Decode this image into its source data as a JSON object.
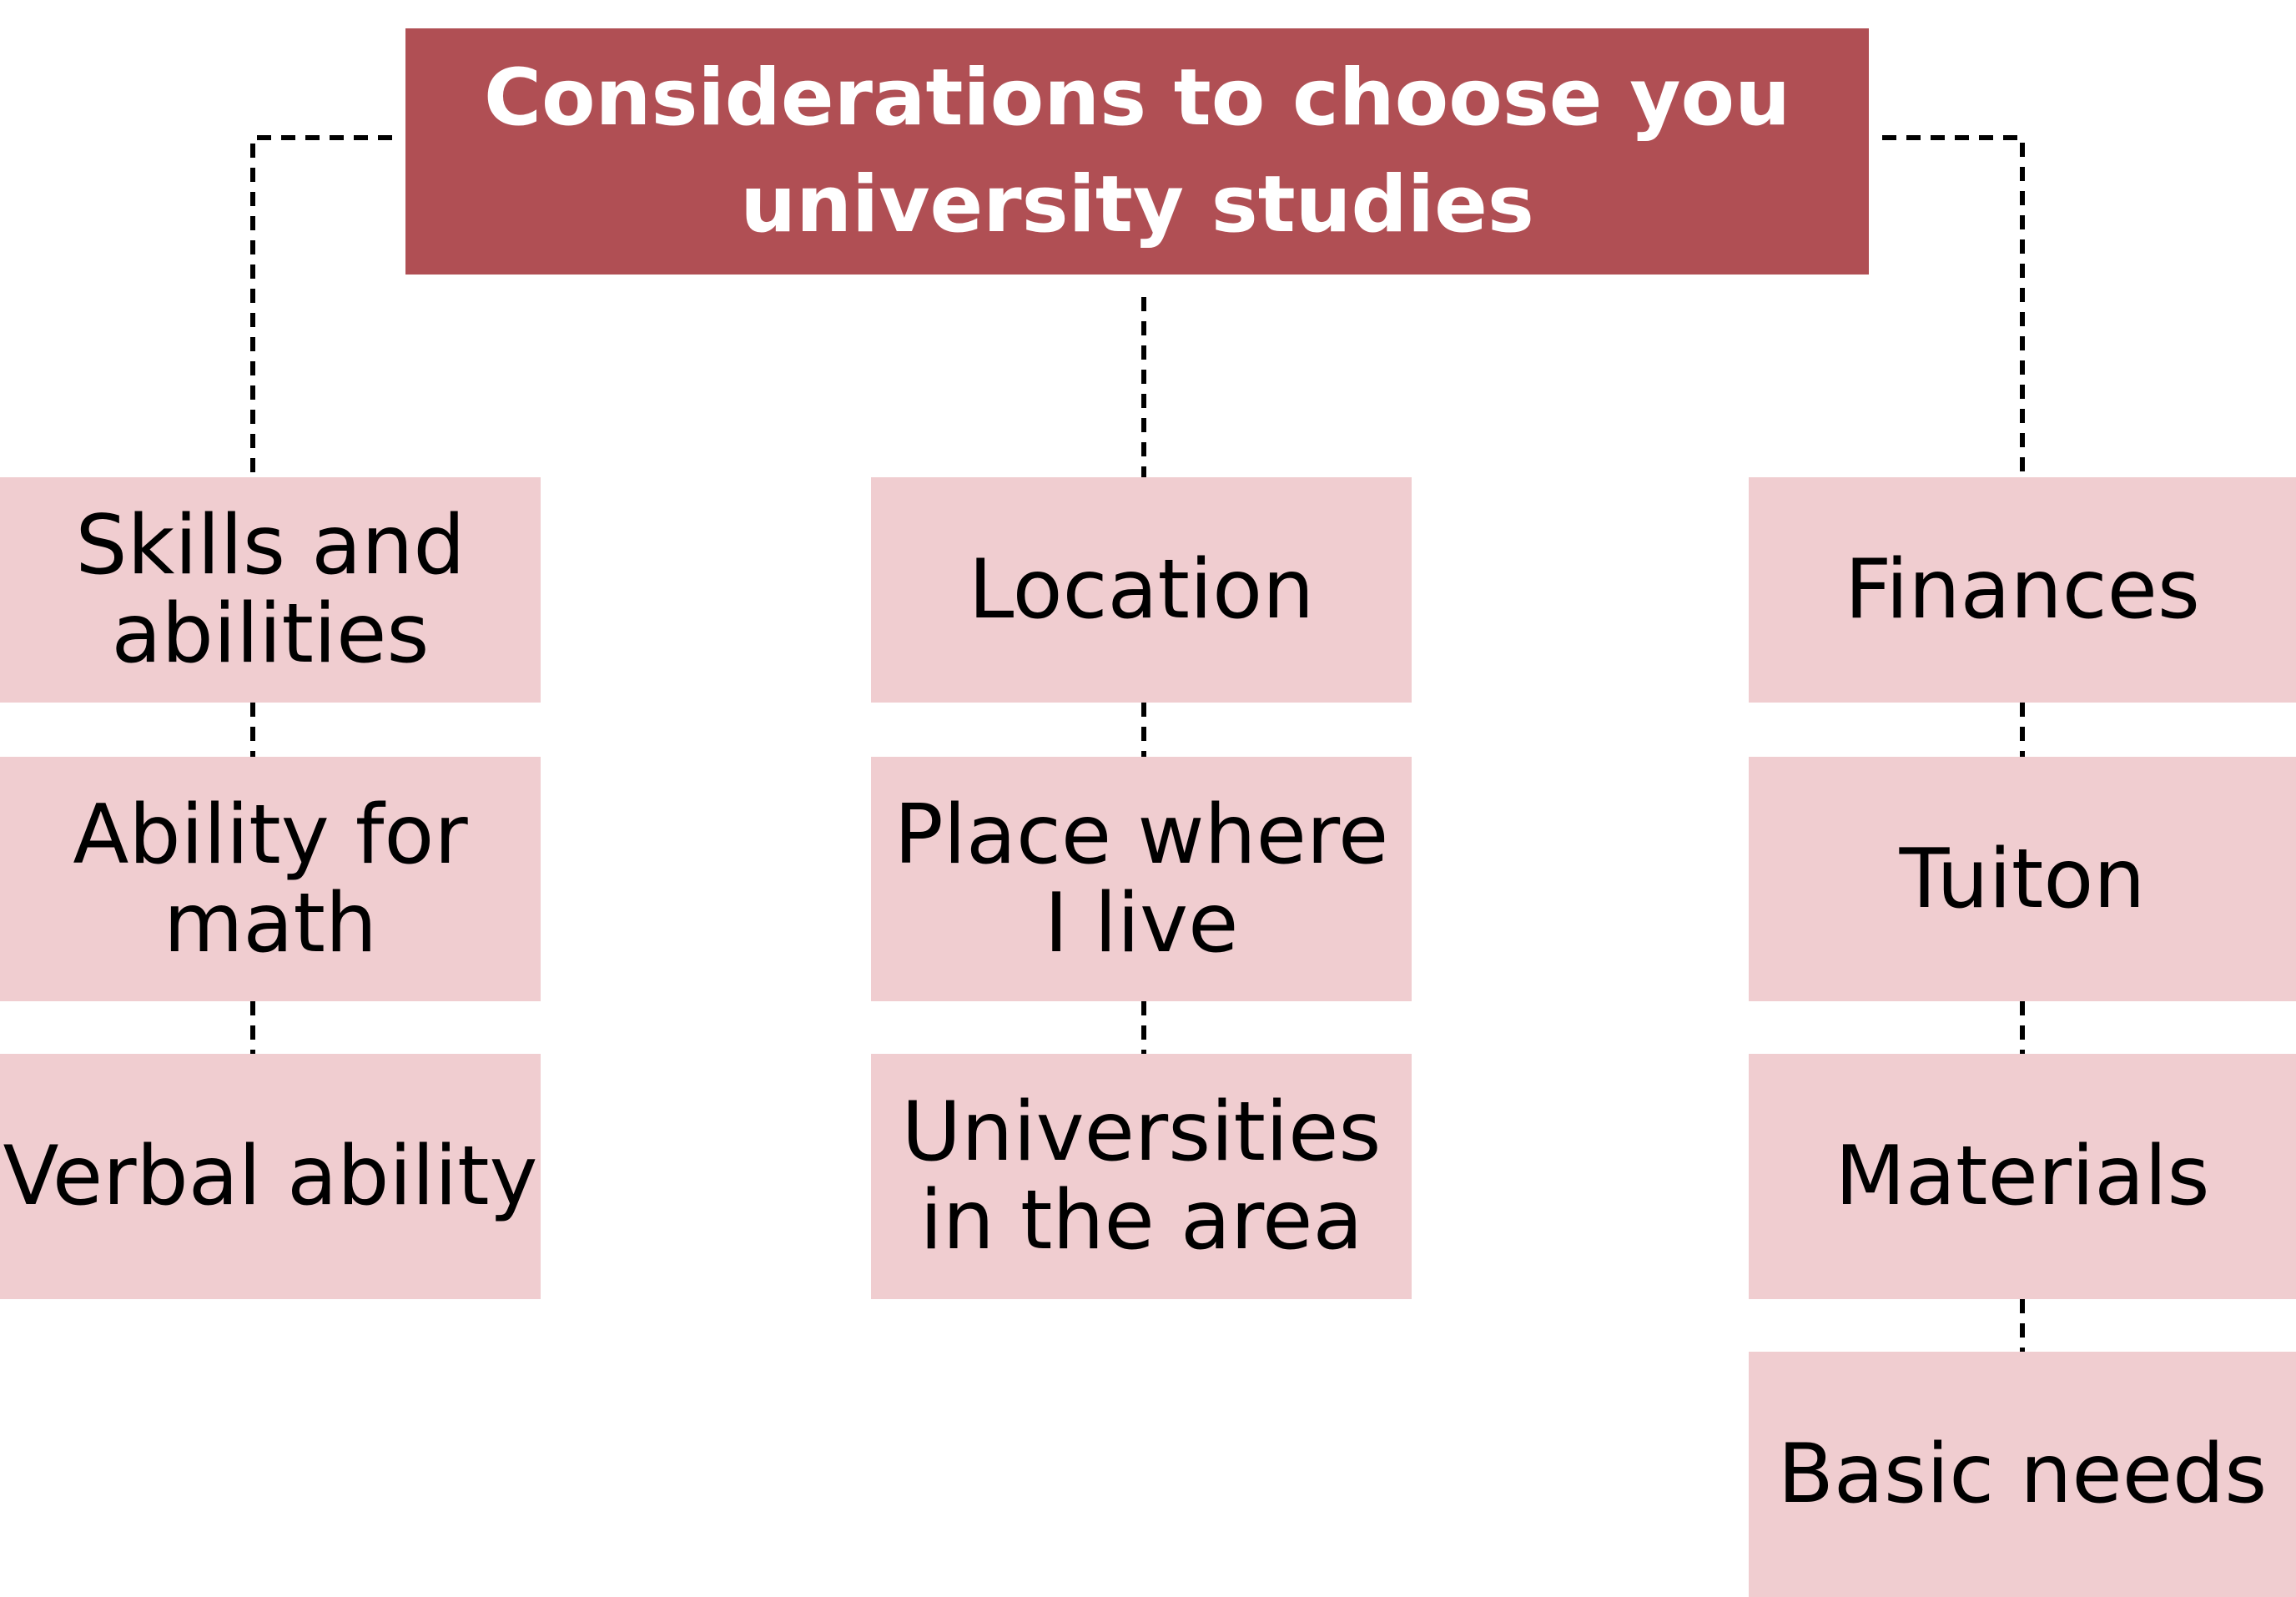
{
  "root": {
    "title": "Considerations to choose you\nuniversity studies"
  },
  "columns": [
    {
      "header": "Skills and\nabilities",
      "items": [
        "Ability for\nmath",
        "Verbal ability"
      ]
    },
    {
      "header": "Location",
      "items": [
        "Place where\nI live",
        "Universities\nin the area"
      ]
    },
    {
      "header": "Finances",
      "items": [
        "Tuiton",
        "Materials",
        "Basic needs"
      ]
    }
  ],
  "colors": {
    "root_fill": "#b04f54",
    "root_text": "#ffffff",
    "child_fill": "#f0cdd0",
    "child_text": "#000000",
    "connector": "#000000"
  }
}
